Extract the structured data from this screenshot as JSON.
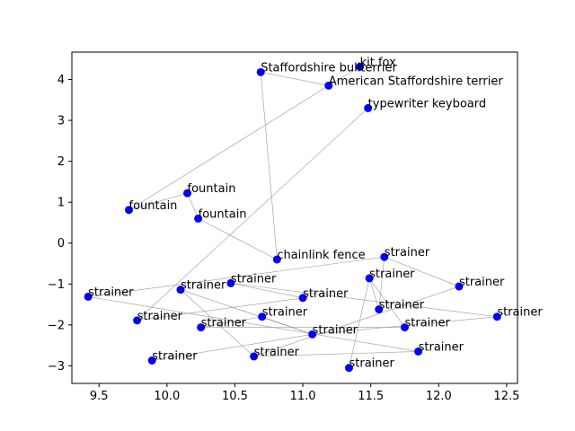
{
  "chart_data": {
    "type": "scatter",
    "title": "",
    "xlabel": "",
    "ylabel": "",
    "xlim": [
      9.3,
      12.58
    ],
    "ylim": [
      -3.43,
      4.67
    ],
    "xticks": [
      "9.5",
      "10.0",
      "10.5",
      "11.0",
      "11.5",
      "12.0",
      "12.5"
    ],
    "yticks": [
      "−3",
      "−2",
      "−1",
      "0",
      "1",
      "2",
      "3",
      "4"
    ],
    "xtick_values": [
      9.5,
      10.0,
      10.5,
      11.0,
      11.5,
      12.0,
      12.5
    ],
    "ytick_values": [
      -3,
      -2,
      -1,
      0,
      1,
      2,
      3,
      4
    ],
    "grid": false,
    "point_color": "#0000ff",
    "edge_color": "#999999",
    "points": [
      {
        "label": "kit fox",
        "x": 11.42,
        "y": 4.31
      },
      {
        "label": "Staffordshire bullterrier",
        "x": 10.69,
        "y": 4.18
      },
      {
        "label": "American Staffordshire terrier",
        "x": 11.19,
        "y": 3.85
      },
      {
        "label": "typewriter keyboard",
        "x": 11.48,
        "y": 3.3
      },
      {
        "label": "fountain",
        "x": 10.15,
        "y": 1.22
      },
      {
        "label": "fountain",
        "x": 9.72,
        "y": 0.81
      },
      {
        "label": "fountain",
        "x": 10.23,
        "y": 0.6
      },
      {
        "label": "chainlink fence",
        "x": 10.81,
        "y": -0.4
      },
      {
        "label": "strainer",
        "x": 11.6,
        "y": -0.34
      },
      {
        "label": "strainer",
        "x": 11.49,
        "y": -0.86
      },
      {
        "label": "strainer",
        "x": 12.15,
        "y": -1.06
      },
      {
        "label": "strainer",
        "x": 10.47,
        "y": -0.98
      },
      {
        "label": "strainer",
        "x": 10.1,
        "y": -1.14
      },
      {
        "label": "strainer",
        "x": 11.0,
        "y": -1.34
      },
      {
        "label": "strainer",
        "x": 9.42,
        "y": -1.31
      },
      {
        "label": "strainer",
        "x": 11.56,
        "y": -1.62
      },
      {
        "label": "strainer",
        "x": 12.43,
        "y": -1.8
      },
      {
        "label": "strainer",
        "x": 9.78,
        "y": -1.89
      },
      {
        "label": "strainer",
        "x": 10.7,
        "y": -1.8
      },
      {
        "label": "strainer",
        "x": 10.25,
        "y": -2.06
      },
      {
        "label": "strainer",
        "x": 11.75,
        "y": -2.06
      },
      {
        "label": "strainer",
        "x": 11.07,
        "y": -2.23
      },
      {
        "label": "strainer",
        "x": 11.85,
        "y": -2.65
      },
      {
        "label": "strainer",
        "x": 10.64,
        "y": -2.77
      },
      {
        "label": "strainer",
        "x": 9.89,
        "y": -2.87
      },
      {
        "label": "strainer",
        "x": 11.34,
        "y": -3.05
      }
    ],
    "edges": [
      [
        1,
        2
      ],
      [
        1,
        7
      ],
      [
        2,
        5
      ],
      [
        0,
        2
      ],
      [
        5,
        4
      ],
      [
        4,
        6
      ],
      [
        6,
        7
      ],
      [
        3,
        17
      ],
      [
        8,
        14
      ],
      [
        8,
        10
      ],
      [
        8,
        15
      ],
      [
        9,
        15
      ],
      [
        9,
        20
      ],
      [
        9,
        25
      ],
      [
        10,
        23
      ],
      [
        11,
        13
      ],
      [
        11,
        16
      ],
      [
        12,
        21
      ],
      [
        12,
        23
      ],
      [
        13,
        17
      ],
      [
        14,
        22
      ],
      [
        18,
        19
      ],
      [
        19,
        20
      ],
      [
        21,
        24
      ],
      [
        18,
        21
      ],
      [
        22,
        23
      ],
      [
        21,
        16
      ]
    ]
  }
}
